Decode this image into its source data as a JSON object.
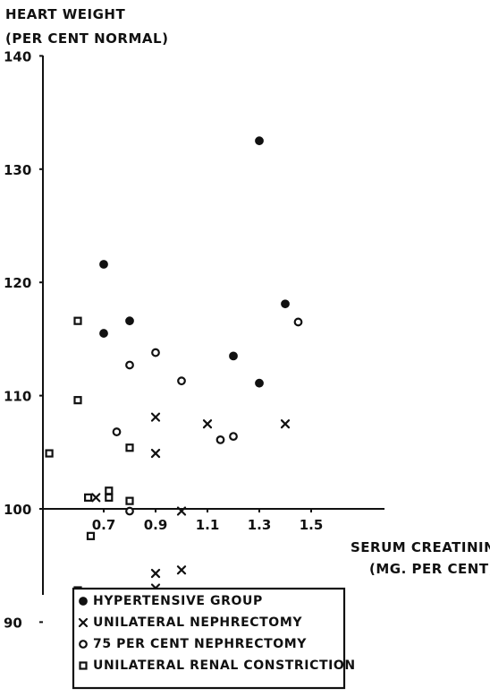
{
  "chart_data": {
    "type": "scatter",
    "title": "",
    "subtitle": "",
    "ylabel_lines": [
      "HEART WEIGHT",
      "(PER CENT NORMAL)"
    ],
    "xlabel_lines": [
      "SERUM CREATININE",
      "(MG. PER CENT)"
    ],
    "x_ticks": [
      "0.7",
      "0.9",
      "1.1",
      "1.3",
      "1.5"
    ],
    "y_ticks": [
      "90",
      "100",
      "110",
      "120",
      "130",
      "140"
    ],
    "xlim": [
      0.5,
      1.6
    ],
    "ylim": [
      90,
      140
    ],
    "x_axis_crosses_at": 100,
    "grid": false,
    "legend_position": "bottom-center",
    "series": [
      {
        "name": "HYPERTENSIVE GROUP",
        "marker": "filled-circle",
        "points": [
          {
            "x": 0.7,
            "y": 121.6
          },
          {
            "x": 0.7,
            "y": 115.5
          },
          {
            "x": 0.8,
            "y": 116.6
          },
          {
            "x": 1.2,
            "y": 113.5
          },
          {
            "x": 1.3,
            "y": 132.5
          },
          {
            "x": 1.3,
            "y": 111.1
          },
          {
            "x": 1.4,
            "y": 118.1
          }
        ]
      },
      {
        "name": "UNILATERAL NEPHRECTOMY",
        "marker": "x",
        "points": [
          {
            "x": 0.67,
            "y": 101.0
          },
          {
            "x": 0.9,
            "y": 108.1
          },
          {
            "x": 0.9,
            "y": 104.9
          },
          {
            "x": 0.9,
            "y": 94.3
          },
          {
            "x": 0.9,
            "y": 93.0
          },
          {
            "x": 1.0,
            "y": 99.8
          },
          {
            "x": 1.0,
            "y": 94.6
          },
          {
            "x": 1.1,
            "y": 107.5
          },
          {
            "x": 1.4,
            "y": 107.5
          }
        ]
      },
      {
        "name": "75 PER CENT NEPHRECTOMY",
        "marker": "open-circle",
        "points": [
          {
            "x": 0.75,
            "y": 106.8
          },
          {
            "x": 0.8,
            "y": 112.7
          },
          {
            "x": 0.8,
            "y": 99.8
          },
          {
            "x": 0.9,
            "y": 113.8
          },
          {
            "x": 1.0,
            "y": 111.3
          },
          {
            "x": 1.15,
            "y": 106.1
          },
          {
            "x": 1.2,
            "y": 106.4
          },
          {
            "x": 1.45,
            "y": 116.5
          }
        ]
      },
      {
        "name": "UNILATERAL RENAL CONSTRICTION",
        "marker": "open-square",
        "points": [
          {
            "x": 0.49,
            "y": 104.9
          },
          {
            "x": 0.6,
            "y": 116.6
          },
          {
            "x": 0.6,
            "y": 109.6
          },
          {
            "x": 0.6,
            "y": 92.8
          },
          {
            "x": 0.64,
            "y": 101.0
          },
          {
            "x": 0.65,
            "y": 97.6
          },
          {
            "x": 0.72,
            "y": 101.0
          },
          {
            "x": 0.72,
            "y": 101.6
          },
          {
            "x": 0.8,
            "y": 105.4
          },
          {
            "x": 0.8,
            "y": 100.7
          }
        ]
      }
    ]
  }
}
